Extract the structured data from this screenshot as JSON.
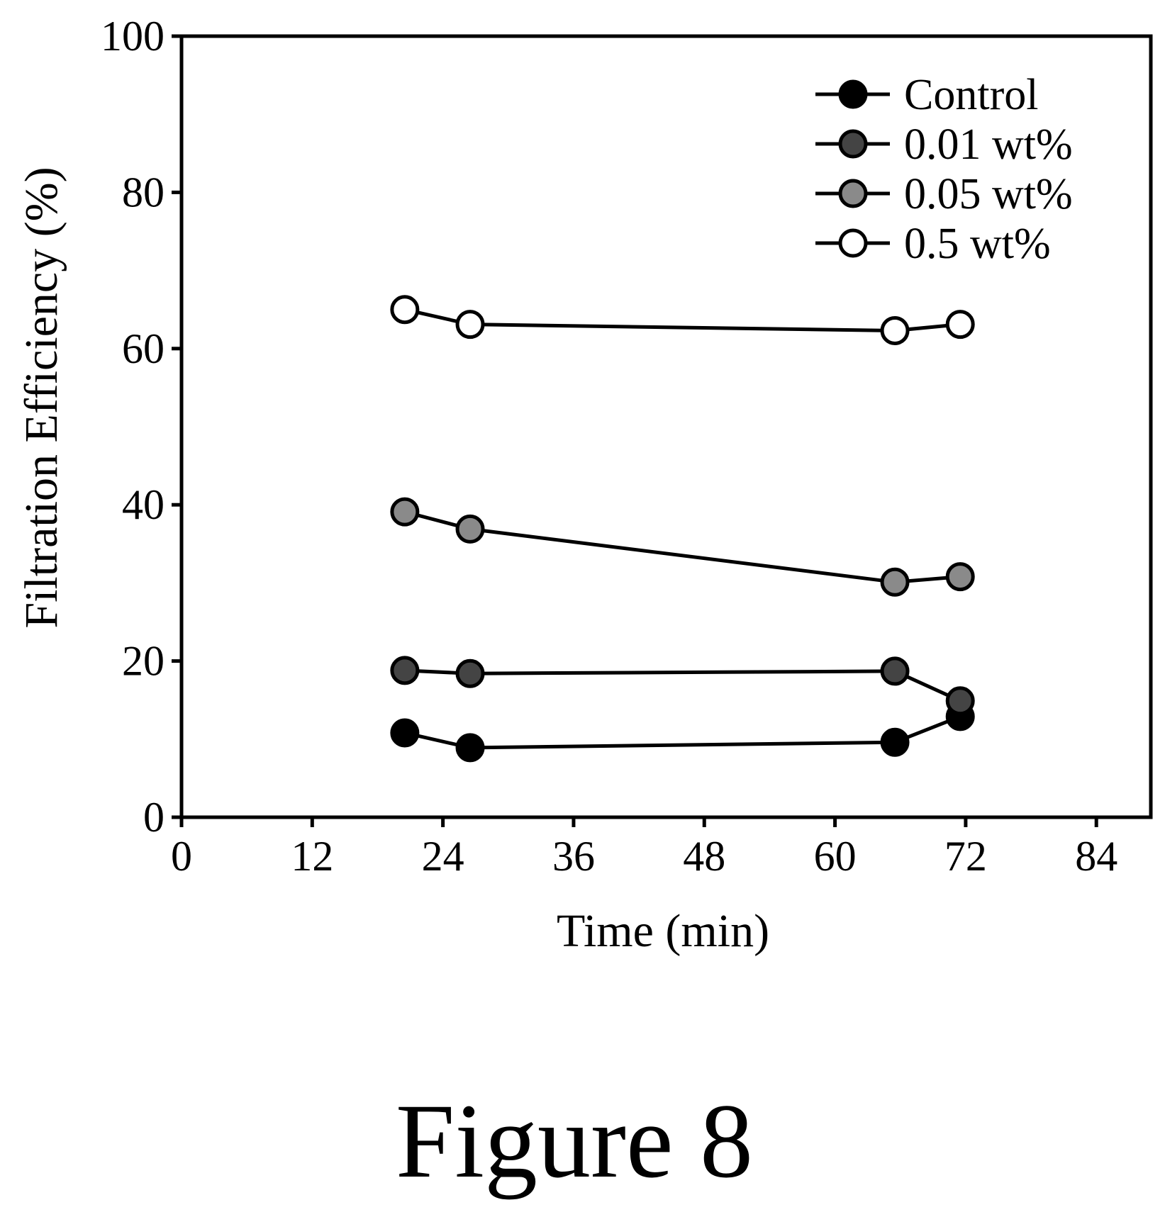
{
  "caption": "Figure 8",
  "chart_data": {
    "type": "line",
    "xlabel": "Time (min)",
    "ylabel": "Filtration Efficiency (%)",
    "xlim": [
      0,
      89
    ],
    "ylim": [
      0,
      100
    ],
    "xticks": [
      0,
      12,
      24,
      36,
      48,
      60,
      72,
      84
    ],
    "yticks": [
      0,
      20,
      40,
      60,
      80,
      100
    ],
    "grid": false,
    "legend_position": "top-right",
    "series": [
      {
        "name": "Control",
        "marker_fill": "#000000",
        "x": [
          20.5,
          26.5,
          65.5,
          71.5
        ],
        "y": [
          10.8,
          8.9,
          9.6,
          12.9
        ]
      },
      {
        "name": "0.01 wt%",
        "marker_fill": "#444444",
        "x": [
          20.5,
          26.5,
          65.5,
          71.5
        ],
        "y": [
          18.8,
          18.4,
          18.7,
          14.9
        ]
      },
      {
        "name": "0.05 wt%",
        "marker_fill": "#8a8a8a",
        "x": [
          20.5,
          26.5,
          65.5,
          71.5
        ],
        "y": [
          39.1,
          36.9,
          30.1,
          30.8
        ]
      },
      {
        "name": "0.5 wt%",
        "marker_fill": "#ffffff",
        "x": [
          20.5,
          26.5,
          65.5,
          71.5
        ],
        "y": [
          65.0,
          63.1,
          62.3,
          63.1
        ]
      }
    ]
  }
}
